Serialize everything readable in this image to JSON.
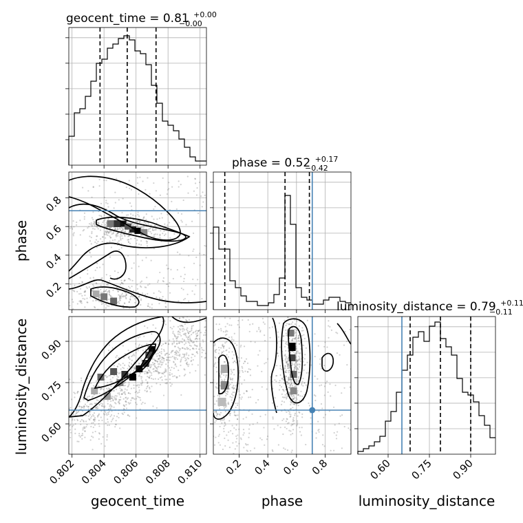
{
  "chart_data": {
    "type": "corner",
    "parameters": [
      {
        "name": "geocent_time",
        "range": [
          0.8018,
          0.8104
        ],
        "ticks": [
          "0.802",
          "0.804",
          "0.806",
          "0.808",
          "0.810"
        ],
        "title_main": "geocent_time = 0.81",
        "title_sup": "+0.00",
        "title_sub": "−0.00",
        "quantiles": [
          0.80375,
          0.80545,
          0.80725
        ],
        "hist": [
          0.21,
          0.38,
          0.41,
          0.5,
          0.61,
          0.74,
          0.77,
          0.85,
          0.88,
          0.92,
          0.94,
          0.91,
          0.83,
          0.81,
          0.73,
          0.58,
          0.45,
          0.32,
          0.29,
          0.25,
          0.19,
          0.13,
          0.06,
          0.03,
          0.03
        ]
      },
      {
        "name": "phase",
        "range": [
          0.02,
          0.98
        ],
        "ticks": [
          "0.2",
          "0.4",
          "0.6",
          "0.8"
        ],
        "title_main": "phase = 0.52",
        "title_sup": "+0.17",
        "title_sub": "−0.42",
        "quantiles": [
          0.1,
          0.52,
          0.69
        ],
        "hist": [
          0.6,
          0.44,
          0.44,
          0.21,
          0.16,
          0.1,
          0.06,
          0.06,
          0.03,
          0.03,
          0.05,
          0.11,
          0.23,
          0.83,
          0.62,
          0.16,
          0.09,
          0.07,
          0.04,
          0.04,
          0.07,
          0.09,
          0.09,
          0.06,
          0.05
        ]
      },
      {
        "name": "luminosity_distance",
        "range": [
          0.49,
          0.99
        ],
        "ticks": [
          "0.60",
          "0.75",
          "0.90"
        ],
        "title_main": "luminosity_distance = 0.79",
        "title_sup": "+0.11",
        "title_sub": "−0.11",
        "quantiles": [
          0.68,
          0.79,
          0.9
        ],
        "hist": [
          0.02,
          0.04,
          0.06,
          0.09,
          0.13,
          0.24,
          0.31,
          0.45,
          0.61,
          0.72,
          0.85,
          0.89,
          0.82,
          0.93,
          0.96,
          0.84,
          0.78,
          0.72,
          0.55,
          0.45,
          0.43,
          0.38,
          0.28,
          0.21,
          0.12
        ]
      }
    ],
    "truths": {
      "phase": 0.71,
      "luminosity_distance": 0.65
    },
    "density_modes": [
      {
        "x": "geocent_time",
        "y": "phase",
        "description": "band of high density near phase 0.55-0.65 and low phase ridge near 0.1"
      },
      {
        "x": "geocent_time",
        "y": "luminosity_distance",
        "description": "positive correlation from (0.8025, 0.62) to (0.8095, 0.98)"
      },
      {
        "x": "phase",
        "y": "luminosity_distance",
        "description": "vertical concentration near phase 0.57 and near 0.1"
      }
    ],
    "grid": true
  }
}
